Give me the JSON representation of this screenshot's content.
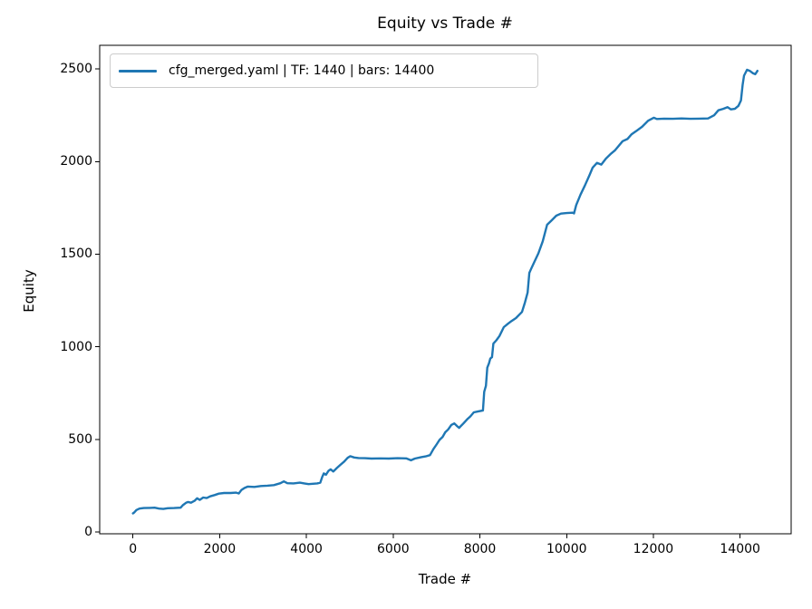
{
  "figure": {
    "background": "#ffffff"
  },
  "chart_data": {
    "type": "line",
    "title": "Equity vs Trade #",
    "xlabel": "Trade #",
    "ylabel": "Equity",
    "xlim": [
      -767,
      15177
    ],
    "ylim": [
      -10,
      2628
    ],
    "x_ticks": [
      0,
      2000,
      4000,
      6000,
      8000,
      10000,
      12000,
      14000
    ],
    "y_ticks": [
      0,
      500,
      1000,
      1500,
      2000,
      2500
    ],
    "grid": false,
    "axis_color": "#000000",
    "legend": {
      "position": "upper-left",
      "entries": [
        {
          "label": "cfg_merged.yaml | TF: 1440 | bars: 14400",
          "color": "#1f77b4"
        }
      ]
    },
    "series": [
      {
        "name": "cfg_merged.yaml | TF: 1440 | bars: 14400",
        "color": "#1f77b4",
        "points": [
          [
            0,
            100
          ],
          [
            30,
            105
          ],
          [
            80,
            118
          ],
          [
            150,
            126
          ],
          [
            250,
            129
          ],
          [
            400,
            130
          ],
          [
            500,
            131
          ],
          [
            600,
            126
          ],
          [
            700,
            124
          ],
          [
            800,
            128
          ],
          [
            950,
            129
          ],
          [
            1100,
            131
          ],
          [
            1150,
            144
          ],
          [
            1220,
            157
          ],
          [
            1270,
            162
          ],
          [
            1340,
            158
          ],
          [
            1420,
            168
          ],
          [
            1480,
            182
          ],
          [
            1540,
            173
          ],
          [
            1620,
            186
          ],
          [
            1700,
            183
          ],
          [
            1780,
            192
          ],
          [
            1880,
            199
          ],
          [
            1980,
            207
          ],
          [
            2100,
            210
          ],
          [
            2250,
            210
          ],
          [
            2380,
            212
          ],
          [
            2440,
            208
          ],
          [
            2500,
            226
          ],
          [
            2570,
            237
          ],
          [
            2650,
            245
          ],
          [
            2800,
            243
          ],
          [
            2950,
            248
          ],
          [
            3100,
            250
          ],
          [
            3250,
            253
          ],
          [
            3400,
            263
          ],
          [
            3480,
            273
          ],
          [
            3560,
            263
          ],
          [
            3700,
            262
          ],
          [
            3850,
            266
          ],
          [
            3950,
            262
          ],
          [
            4050,
            258
          ],
          [
            4150,
            260
          ],
          [
            4250,
            262
          ],
          [
            4320,
            266
          ],
          [
            4360,
            295
          ],
          [
            4400,
            316
          ],
          [
            4450,
            309
          ],
          [
            4510,
            330
          ],
          [
            4560,
            338
          ],
          [
            4620,
            326
          ],
          [
            4700,
            345
          ],
          [
            4780,
            362
          ],
          [
            4870,
            380
          ],
          [
            4950,
            400
          ],
          [
            5010,
            409
          ],
          [
            5100,
            402
          ],
          [
            5200,
            399
          ],
          [
            5350,
            398
          ],
          [
            5500,
            396
          ],
          [
            5700,
            397
          ],
          [
            5900,
            396
          ],
          [
            6100,
            398
          ],
          [
            6300,
            397
          ],
          [
            6410,
            387
          ],
          [
            6500,
            396
          ],
          [
            6650,
            404
          ],
          [
            6750,
            408
          ],
          [
            6850,
            415
          ],
          [
            6930,
            448
          ],
          [
            7000,
            472
          ],
          [
            7070,
            497
          ],
          [
            7140,
            513
          ],
          [
            7200,
            538
          ],
          [
            7270,
            554
          ],
          [
            7340,
            578
          ],
          [
            7410,
            586
          ],
          [
            7480,
            570
          ],
          [
            7520,
            562
          ],
          [
            7620,
            586
          ],
          [
            7720,
            611
          ],
          [
            7780,
            624
          ],
          [
            7860,
            646
          ],
          [
            7950,
            650
          ],
          [
            8070,
            656
          ],
          [
            8100,
            757
          ],
          [
            8140,
            789
          ],
          [
            8170,
            887
          ],
          [
            8210,
            911
          ],
          [
            8240,
            936
          ],
          [
            8280,
            944
          ],
          [
            8310,
            1017
          ],
          [
            8380,
            1035
          ],
          [
            8450,
            1058
          ],
          [
            8550,
            1106
          ],
          [
            8650,
            1125
          ],
          [
            8730,
            1139
          ],
          [
            8830,
            1155
          ],
          [
            8970,
            1188
          ],
          [
            9040,
            1240
          ],
          [
            9100,
            1293
          ],
          [
            9140,
            1399
          ],
          [
            9180,
            1420
          ],
          [
            9250,
            1456
          ],
          [
            9350,
            1505
          ],
          [
            9450,
            1570
          ],
          [
            9550,
            1659
          ],
          [
            9660,
            1684
          ],
          [
            9760,
            1708
          ],
          [
            9870,
            1719
          ],
          [
            10000,
            1722
          ],
          [
            10140,
            1724
          ],
          [
            10170,
            1720
          ],
          [
            10220,
            1765
          ],
          [
            10320,
            1822
          ],
          [
            10420,
            1871
          ],
          [
            10530,
            1928
          ],
          [
            10600,
            1968
          ],
          [
            10700,
            1993
          ],
          [
            10800,
            1984
          ],
          [
            10910,
            2017
          ],
          [
            11010,
            2040
          ],
          [
            11110,
            2060
          ],
          [
            11290,
            2110
          ],
          [
            11400,
            2122
          ],
          [
            11500,
            2148
          ],
          [
            11600,
            2164
          ],
          [
            11740,
            2188
          ],
          [
            11880,
            2221
          ],
          [
            12010,
            2237
          ],
          [
            12080,
            2230
          ],
          [
            12250,
            2232
          ],
          [
            12450,
            2231
          ],
          [
            12650,
            2233
          ],
          [
            12850,
            2231
          ],
          [
            13050,
            2232
          ],
          [
            13260,
            2233
          ],
          [
            13400,
            2250
          ],
          [
            13500,
            2277
          ],
          [
            13610,
            2285
          ],
          [
            13710,
            2294
          ],
          [
            13790,
            2282
          ],
          [
            13880,
            2285
          ],
          [
            13960,
            2301
          ],
          [
            14020,
            2330
          ],
          [
            14060,
            2416
          ],
          [
            14090,
            2464
          ],
          [
            14160,
            2496
          ],
          [
            14230,
            2489
          ],
          [
            14300,
            2477
          ],
          [
            14350,
            2472
          ],
          [
            14400,
            2490
          ]
        ]
      }
    ]
  }
}
